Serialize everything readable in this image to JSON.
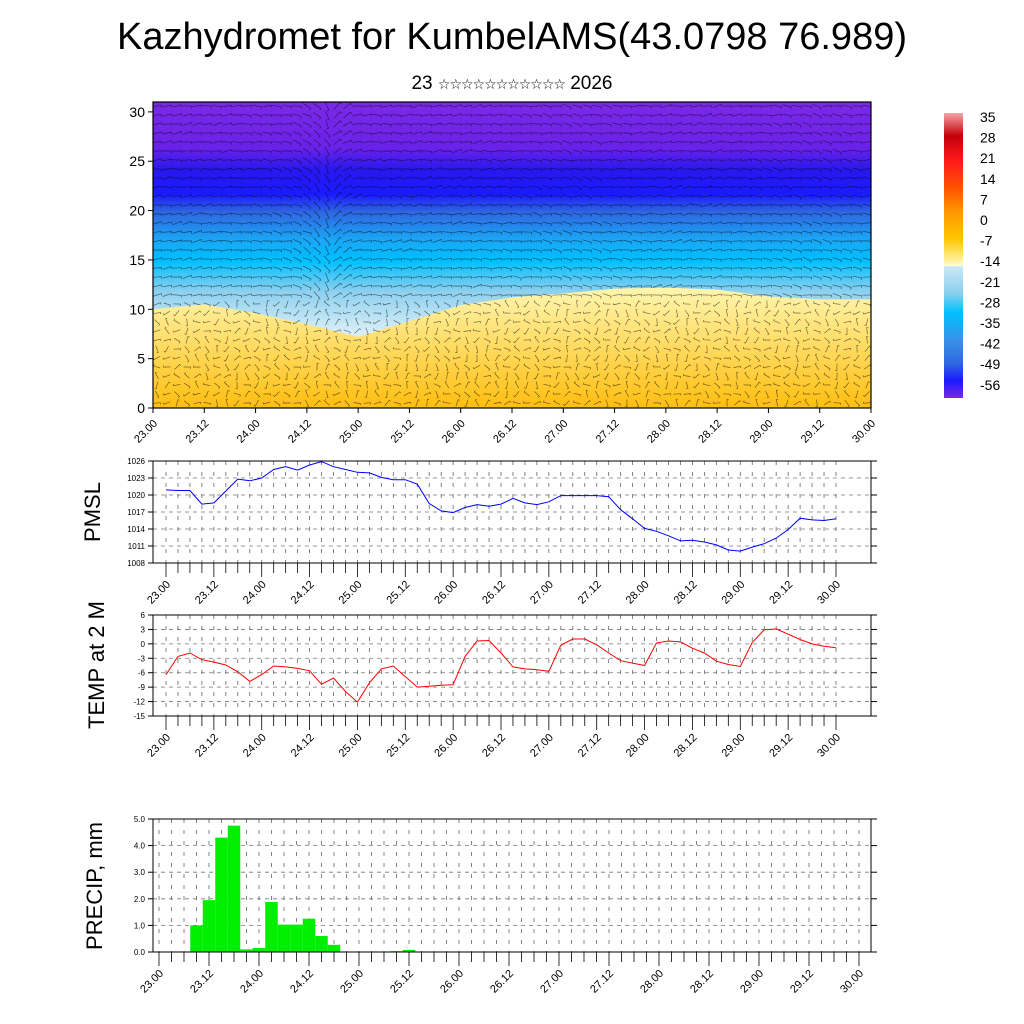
{
  "title": "Kazhydromet for KumbelAMS(43.0798 76.989)",
  "subtitle": {
    "day": "23",
    "month_glyphs": "☆☆☆☆☆☆☆☆☆☆☆",
    "year": "2026"
  },
  "x_labels": [
    "23.00",
    "23.12",
    "24.00",
    "24.12",
    "25.00",
    "25.12",
    "26.00",
    "26.12",
    "27.00",
    "27.12",
    "28.00",
    "28.12",
    "29.00",
    "29.12",
    "30.00"
  ],
  "chart_data": [
    {
      "type": "heatmap",
      "name": "temperature-wind-cross-section",
      "ylim": [
        0,
        31
      ],
      "yticks": [
        "0",
        "5",
        "10",
        "15",
        "20",
        "25",
        "30"
      ],
      "xlabels_ref": "x_labels",
      "colorbar": {
        "labels": [
          "35",
          "28",
          "21",
          "14",
          "7",
          "0",
          "-7",
          "-14",
          "-21",
          "-28",
          "-35",
          "-42",
          "-49",
          "-56"
        ],
        "colors": [
          "#f4a6a6",
          "#c4000a",
          "#ff1a1a",
          "#ff5000",
          "#ff9a00",
          "#ffc400",
          "#ffe866",
          "#c9e7f5",
          "#8ed0ee",
          "#00c0ff",
          "#3a90ea",
          "#2f66e0",
          "#1a1aff",
          "#7a28e6"
        ]
      },
      "freezing_boundary_day_offsets": [
        0,
        0.5,
        1,
        1.5,
        2,
        2.5,
        3,
        3.5,
        4,
        4.5,
        5,
        5.5,
        6,
        6.5,
        7
      ],
      "freezing_boundary_heights": [
        10,
        10.5,
        9.6,
        8.5,
        7.2,
        8.8,
        10.4,
        11.2,
        11.6,
        12.1,
        12.2,
        12,
        11.3,
        11,
        11
      ]
    },
    {
      "type": "line",
      "name": "pmsl",
      "ylabel": "PMSL",
      "ylim": [
        1008,
        1026
      ],
      "yticks": [
        "1008",
        "1011",
        "1014",
        "1017",
        "1020",
        "1023",
        "1026"
      ],
      "step_hours": 3,
      "color": "#0000ff",
      "values": [
        1020.9,
        1020.8,
        1020.8,
        1018.4,
        1018.6,
        1020.7,
        1022.8,
        1022.5,
        1023.0,
        1024.5,
        1025.0,
        1024.4,
        1025.3,
        1025.9,
        1025.0,
        1024.5,
        1024.0,
        1023.9,
        1023.1,
        1022.7,
        1022.7,
        1021.9,
        1018.5,
        1017.2,
        1016.9,
        1017.8,
        1018.3,
        1018.0,
        1018.4,
        1019.4,
        1018.6,
        1018.3,
        1018.8,
        1019.9,
        1019.9,
        1019.9,
        1019.9,
        1019.7,
        1017.4,
        1015.8,
        1014.1,
        1013.6,
        1012.8,
        1011.9,
        1012.0,
        1011.7,
        1011.2,
        1010.3,
        1010.1,
        1010.8,
        1011.4,
        1012.4,
        1013.9,
        1015.9,
        1015.6,
        1015.5,
        1015.8
      ]
    },
    {
      "type": "line",
      "name": "temp-2m",
      "ylabel": "TEMP at 2 M",
      "ylim": [
        -15,
        6
      ],
      "yticks": [
        "-15",
        "-12",
        "-9",
        "-6",
        "-3",
        "0",
        "3",
        "6"
      ],
      "step_hours": 3,
      "color": "#ff0000",
      "values": [
        -6.4,
        -2.6,
        -1.9,
        -3.3,
        -3.8,
        -4.4,
        -5.8,
        -7.8,
        -6.4,
        -4.6,
        -4.8,
        -5.1,
        -5.6,
        -8.4,
        -7.1,
        -9.9,
        -12.1,
        -8.1,
        -5.2,
        -4.6,
        -6.8,
        -9.0,
        -8.8,
        -8.6,
        -8.5,
        -2.6,
        0.6,
        0.7,
        -1.9,
        -4.8,
        -5.2,
        -5.4,
        -5.7,
        -0.3,
        1.0,
        1.0,
        -0.2,
        -1.9,
        -3.5,
        -4.0,
        -4.5,
        0.2,
        0.6,
        0.4,
        -0.9,
        -1.9,
        -3.6,
        -4.3,
        -4.7,
        0.3,
        2.9,
        3.1,
        2.0,
        0.9,
        0.0,
        -0.5,
        -0.8
      ]
    },
    {
      "type": "bar",
      "name": "precip",
      "ylabel": "PRECIP, mm",
      "ylim": [
        0,
        5
      ],
      "yticks": [
        "0.0",
        "1.0",
        "2.0",
        "3.0",
        "4.0",
        "5.0"
      ],
      "step_hours": 3,
      "color": "#00ee00",
      "values": [
        0,
        0,
        0.02,
        1.0,
        1.95,
        4.3,
        4.75,
        0.1,
        0.15,
        1.88,
        1.03,
        1.03,
        1.25,
        0.6,
        0.27,
        0,
        0,
        0,
        0,
        0.03,
        0.08,
        0,
        0,
        0,
        0,
        0,
        0,
        0,
        0,
        0,
        0,
        0,
        0,
        0,
        0,
        0,
        0,
        0,
        0,
        0,
        0,
        0,
        0,
        0,
        0,
        0,
        0,
        0,
        0,
        0,
        0,
        0,
        0,
        0,
        0,
        0,
        0
      ]
    }
  ]
}
